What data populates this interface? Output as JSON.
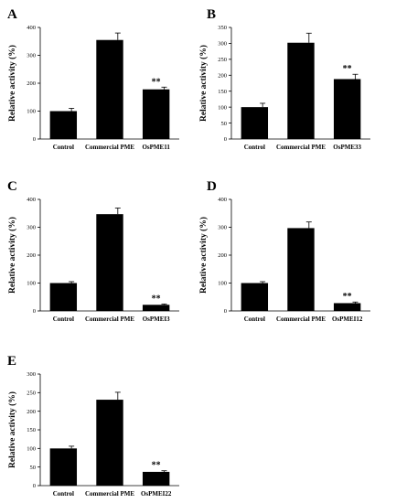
{
  "chart_data": [
    {
      "type": "bar",
      "panel": "A",
      "ylabel": "Relative activity (%)",
      "ylim": [
        0,
        400
      ],
      "yticks": [
        0,
        100,
        200,
        300,
        400
      ],
      "categories": [
        "Control",
        "Commercial PME",
        "OsPME11"
      ],
      "values": [
        100,
        355,
        178
      ],
      "errors": [
        10,
        25,
        8
      ],
      "annotations": [
        "",
        "",
        "**"
      ],
      "colors": {
        "bar": "#000000",
        "axis": "#000000"
      }
    },
    {
      "type": "bar",
      "panel": "B",
      "ylabel": "Relative activity (%)",
      "ylim": [
        0,
        350
      ],
      "yticks": [
        0,
        50,
        100,
        150,
        200,
        250,
        300,
        350
      ],
      "categories": [
        "Control",
        "Commercial PME",
        "OsPME33"
      ],
      "values": [
        100,
        302,
        188
      ],
      "errors": [
        12,
        30,
        15
      ],
      "annotations": [
        "",
        "",
        "**"
      ],
      "colors": {
        "bar": "#000000",
        "axis": "#000000"
      }
    },
    {
      "type": "bar",
      "panel": "C",
      "ylabel": "Relative activity (%)",
      "ylim": [
        0,
        400
      ],
      "yticks": [
        0,
        100,
        200,
        300,
        400
      ],
      "categories": [
        "Control",
        "Commercial PME",
        "OsPMEI3"
      ],
      "values": [
        100,
        347,
        22
      ],
      "errors": [
        5,
        22,
        3
      ],
      "annotations": [
        "",
        "",
        "**"
      ],
      "colors": {
        "bar": "#000000",
        "axis": "#000000"
      }
    },
    {
      "type": "bar",
      "panel": "D",
      "ylabel": "Relative activity (%)",
      "ylim": [
        0,
        400
      ],
      "yticks": [
        0,
        100,
        200,
        300,
        400
      ],
      "categories": [
        "Control",
        "Commercial PME",
        "OsPMEI12"
      ],
      "values": [
        100,
        297,
        28
      ],
      "errors": [
        5,
        22,
        4
      ],
      "annotations": [
        "",
        "",
        "**"
      ],
      "colors": {
        "bar": "#000000",
        "axis": "#000000"
      }
    },
    {
      "type": "bar",
      "panel": "E",
      "ylabel": "Relative activity (%)",
      "ylim": [
        0,
        300
      ],
      "yticks": [
        0,
        50,
        100,
        150,
        200,
        250,
        300
      ],
      "categories": [
        "Control",
        "Commercial PME",
        "OsPMEI22"
      ],
      "values": [
        100,
        231,
        37
      ],
      "errors": [
        6,
        20,
        3
      ],
      "annotations": [
        "",
        "",
        "**"
      ],
      "colors": {
        "bar": "#000000",
        "axis": "#000000"
      }
    }
  ]
}
